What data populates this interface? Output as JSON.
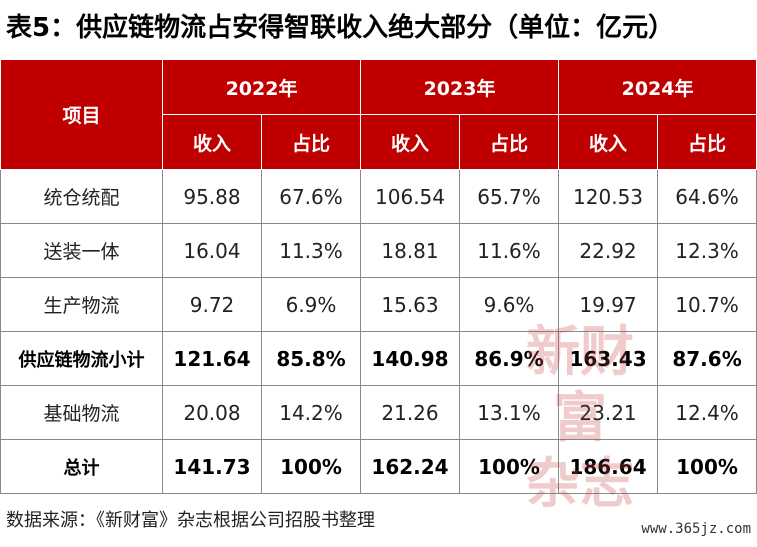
{
  "title": "表5：供应链物流占安得智联收入绝大部分（单位：亿元）",
  "table": {
    "item_header": "项目",
    "years": [
      "2022年",
      "2023年",
      "2024年"
    ],
    "sub_headers": [
      "收入",
      "占比"
    ],
    "rows": [
      {
        "label": "统仓统配",
        "cells": [
          "95.88",
          "67.6%",
          "106.54",
          "65.7%",
          "120.53",
          "64.6%"
        ],
        "bold": false
      },
      {
        "label": "送装一体",
        "cells": [
          "16.04",
          "11.3%",
          "18.81",
          "11.6%",
          "22.92",
          "12.3%"
        ],
        "bold": false
      },
      {
        "label": "生产物流",
        "cells": [
          "9.72",
          "6.9%",
          "15.63",
          "9.6%",
          "19.97",
          "10.7%"
        ],
        "bold": false
      },
      {
        "label": "供应链物流小计",
        "cells": [
          "121.64",
          "85.8%",
          "140.98",
          "86.9%",
          "163.43",
          "87.6%"
        ],
        "bold": true
      },
      {
        "label": "基础物流",
        "cells": [
          "20.08",
          "14.2%",
          "21.26",
          "13.1%",
          "23.21",
          "12.4%"
        ],
        "bold": false
      },
      {
        "label": "总计",
        "cells": [
          "141.73",
          "100%",
          "162.24",
          "100%",
          "186.64",
          "100%"
        ],
        "bold": true
      }
    ]
  },
  "source": "数据来源：《新财富》杂志根据公司招股书整理",
  "watermark": {
    "line1": "新财富",
    "line2": "杂志"
  },
  "site": "www.365jz.com",
  "colors": {
    "header_bg": "#c00000",
    "header_text": "#ffffff",
    "watermark": "#c84646"
  }
}
